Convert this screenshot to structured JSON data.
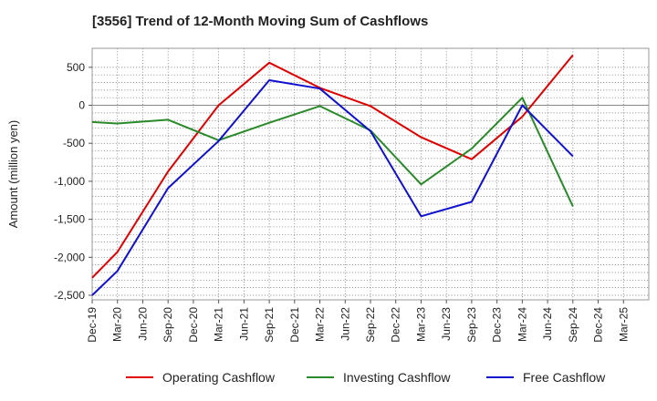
{
  "chart_data": {
    "type": "line",
    "title": "[3556]  Trend of 12-Month Moving Sum of Cashflows",
    "xlabel": "",
    "ylabel": "Amount (million yen)",
    "categories": [
      "Dec-19",
      "Mar-20",
      "Jun-20",
      "Sep-20",
      "Dec-20",
      "Mar-21",
      "Jun-21",
      "Sep-21",
      "Dec-21",
      "Mar-22",
      "Jun-22",
      "Sep-22",
      "Dec-22",
      "Mar-23",
      "Jun-23",
      "Sep-23",
      "Dec-23",
      "Mar-24",
      "Jun-24",
      "Sep-24",
      "Dec-24",
      "Mar-25"
    ],
    "ylim": [
      -2560,
      750
    ],
    "yticks": [
      500,
      0,
      -500,
      -1000,
      -1500,
      -2000,
      -2500
    ],
    "ytick_labels": [
      "500",
      "0",
      "-500",
      "-1,000",
      "-1,500",
      "-2,000",
      "-2,500"
    ],
    "grid": true,
    "legend_position": "bottom",
    "series": [
      {
        "name": "Operating Cashflow",
        "color": "#e00000",
        "values": [
          -2270,
          -1930,
          null,
          -870,
          null,
          0,
          null,
          560,
          null,
          230,
          null,
          -10,
          null,
          -420,
          null,
          -710,
          null,
          -150,
          null,
          660,
          null,
          null
        ]
      },
      {
        "name": "Investing Cashflow",
        "color": "#2a8a2a",
        "values": [
          -220,
          -240,
          null,
          -190,
          null,
          -460,
          null,
          -230,
          null,
          -10,
          null,
          -330,
          null,
          -1040,
          null,
          -570,
          null,
          100,
          null,
          -1330,
          null,
          null
        ]
      },
      {
        "name": "Free Cashflow",
        "color": "#1010d0",
        "values": [
          -2500,
          -2180,
          null,
          -1090,
          null,
          -470,
          null,
          330,
          null,
          220,
          null,
          -340,
          null,
          -1460,
          null,
          -1270,
          null,
          0,
          null,
          -670,
          null,
          null
        ]
      }
    ]
  }
}
